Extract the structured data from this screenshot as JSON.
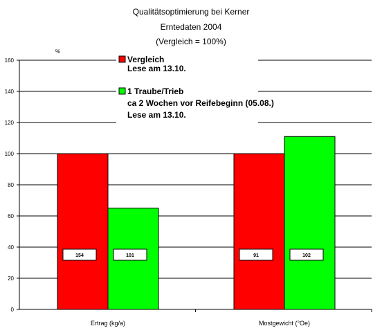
{
  "chart_data": {
    "type": "bar",
    "title": [
      "Qualitätsoptimierung bei Kerner",
      "Erntedaten 2004",
      "(Vergleich =  100%)"
    ],
    "ylabel": "%",
    "xlabel": "",
    "ylim": [
      0,
      160
    ],
    "yticks": [
      0,
      20,
      40,
      60,
      80,
      100,
      120,
      140,
      160
    ],
    "grid": true,
    "legend_position": "top-center",
    "categories": [
      "Ertrag (kg/a)",
      "Mostgewicht (°Oe)"
    ],
    "series": [
      {
        "name": "Vergleich",
        "legend_lines": [
          "Vergleich",
          "Lese am 13.10."
        ],
        "color": "#ff0000",
        "values": [
          100,
          100
        ],
        "value_labels": [
          "154",
          "91"
        ]
      },
      {
        "name": "1 Traube/Trieb",
        "legend_lines": [
          "1 Traube/Trieb",
          "ca 2 Wochen vor Reifebeginn (05.08.)",
          "Lese am 13.10."
        ],
        "color": "#00ff00",
        "values": [
          65,
          111
        ],
        "value_labels": [
          "101",
          "102"
        ]
      }
    ]
  }
}
